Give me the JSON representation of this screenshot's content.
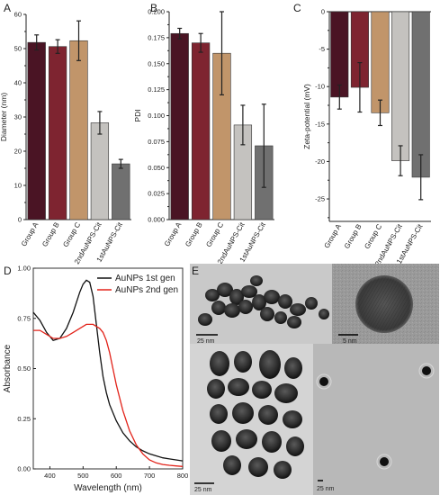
{
  "panels": {
    "A": {
      "letter": "A",
      "chart_data": {
        "type": "bar",
        "categories": [
          "Group A",
          "Group B",
          "Group C",
          "2ndAuNPS-Cit",
          "1stAuNPS-Cit"
        ],
        "values": [
          51.8,
          50.6,
          52.3,
          28.3,
          16.3
        ],
        "errors": [
          2.2,
          2.0,
          5.8,
          3.3,
          1.3
        ],
        "colors": [
          "#4a1424",
          "#7e2430",
          "#c1956a",
          "#c4c2bf",
          "#707070"
        ],
        "ylabel": "Diameter (nm)",
        "ylim": [
          0,
          60
        ],
        "yticks": [
          "0",
          "10",
          "20",
          "30",
          "40",
          "50",
          "60"
        ]
      }
    },
    "B": {
      "letter": "B",
      "chart_data": {
        "type": "bar",
        "categories": [
          "Group A",
          "Group B",
          "Group C",
          "2ndAuNPS-Cit",
          "1stAuNPS-Cit"
        ],
        "values": [
          0.179,
          0.17,
          0.16,
          0.091,
          0.071
        ],
        "errors": [
          0.005,
          0.009,
          0.04,
          0.019,
          0.04
        ],
        "colors": [
          "#4a1424",
          "#7e2430",
          "#c1956a",
          "#c4c2bf",
          "#707070"
        ],
        "ylabel": "PDI",
        "ylim": [
          0,
          0.2
        ],
        "yticks": [
          "0.000",
          "0.025",
          "0.050",
          "0.075",
          "0.100",
          "0.125",
          "0.150",
          "0.175",
          "0.200"
        ]
      }
    },
    "C": {
      "letter": "C",
      "chart_data": {
        "type": "bar",
        "categories": [
          "Group A",
          "Group B",
          "Group C",
          "2ndAuNPS-Cit",
          "1stAuNPS-Cit"
        ],
        "values": [
          -11.4,
          -10.1,
          -13.5,
          -19.9,
          -22.1
        ],
        "errors": [
          1.6,
          3.3,
          1.7,
          2.0,
          3.0
        ],
        "colors": [
          "#4a1424",
          "#7e2430",
          "#c1956a",
          "#c4c2bf",
          "#707070"
        ],
        "ylabel": "Zeta-potential (mV)",
        "ylim": [
          -28,
          0
        ],
        "yticks": [
          "-25",
          "-20",
          "-15",
          "-10",
          "-5",
          "0"
        ]
      }
    },
    "D": {
      "letter": "D",
      "chart_data": {
        "type": "line",
        "xlabel": "Wavelength (nm)",
        "ylabel": "Absorbance",
        "xlim": [
          350,
          800
        ],
        "ylim": [
          0,
          1.0
        ],
        "xticks": [
          "400",
          "500",
          "600",
          "700",
          "800"
        ],
        "yticks": [
          "0.00",
          "0.25",
          "0.50",
          "0.75",
          "1.00"
        ],
        "series": [
          {
            "name": "AuNPs 1st gen",
            "color": "#111111",
            "x": [
              350,
              370,
              390,
              410,
              430,
              450,
              470,
              490,
              500,
              510,
              520,
              530,
              540,
              550,
              560,
              570,
              580,
              600,
              620,
              640,
              660,
              680,
              700,
              720,
              740,
              760,
              780,
              800
            ],
            "y": [
              0.78,
              0.74,
              0.68,
              0.64,
              0.65,
              0.7,
              0.78,
              0.88,
              0.92,
              0.94,
              0.93,
              0.86,
              0.72,
              0.58,
              0.46,
              0.38,
              0.32,
              0.24,
              0.18,
              0.14,
              0.11,
              0.09,
              0.075,
              0.065,
              0.055,
              0.05,
              0.045,
              0.04
            ]
          },
          {
            "name": "AuNPs 2nd gen",
            "color": "#e2231a",
            "x": [
              350,
              370,
              390,
              410,
              430,
              450,
              470,
              490,
              510,
              530,
              540,
              550,
              560,
              570,
              580,
              590,
              600,
              620,
              640,
              660,
              680,
              700,
              720,
              740,
              760,
              780,
              800
            ],
            "y": [
              0.69,
              0.69,
              0.67,
              0.65,
              0.65,
              0.66,
              0.68,
              0.7,
              0.72,
              0.72,
              0.71,
              0.7,
              0.68,
              0.64,
              0.58,
              0.5,
              0.42,
              0.29,
              0.19,
              0.12,
              0.075,
              0.045,
              0.03,
              0.022,
              0.018,
              0.015,
              0.012
            ]
          }
        ]
      }
    },
    "E": {
      "letter": "E",
      "scale_bars": [
        "25 nm",
        "5 nm",
        "25 nm",
        "25 nm"
      ]
    }
  }
}
